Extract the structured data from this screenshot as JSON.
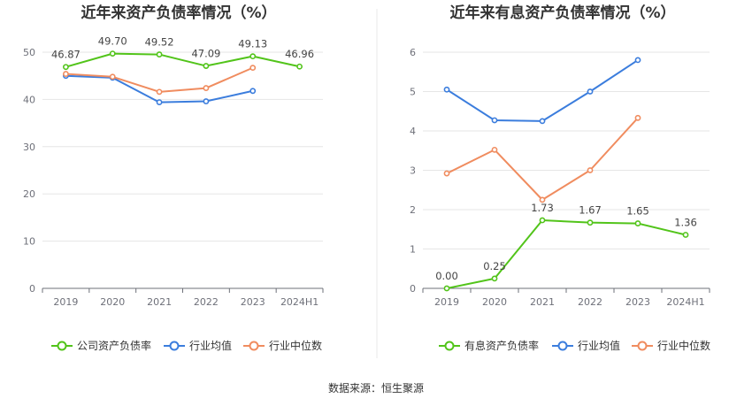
{
  "chart_data": [
    {
      "type": "line",
      "title": "近年来资产负债率情况（%）",
      "categories": [
        "2019",
        "2020",
        "2021",
        "2022",
        "2023",
        "2024H1"
      ],
      "ylim": [
        0,
        50
      ],
      "yticks": [
        0,
        10,
        20,
        30,
        40,
        50
      ],
      "legend_position": "bottom",
      "grid": true,
      "series": [
        {
          "name": "公司资产负债率",
          "color": "#52c41a",
          "labeled": true,
          "values": [
            46.87,
            49.7,
            49.52,
            47.09,
            49.13,
            46.96
          ],
          "labels": [
            "46.87",
            "49.70",
            "49.52",
            "47.09",
            "49.13",
            "46.96"
          ]
        },
        {
          "name": "行业均值",
          "color": "#3b7ddd",
          "labeled": false,
          "values": [
            45.0,
            44.6,
            39.4,
            39.6,
            41.8,
            null
          ]
        },
        {
          "name": "行业中位数",
          "color": "#f08c5f",
          "labeled": false,
          "values": [
            45.4,
            44.8,
            41.6,
            42.4,
            46.7,
            null
          ]
        }
      ]
    },
    {
      "type": "line",
      "title": "近年来有息资产负债率情况（%）",
      "categories": [
        "2019",
        "2020",
        "2021",
        "2022",
        "2023",
        "2024H1"
      ],
      "ylim": [
        0,
        6
      ],
      "yticks": [
        0,
        1,
        2,
        3,
        4,
        5,
        6
      ],
      "legend_position": "bottom",
      "grid": true,
      "series": [
        {
          "name": "有息资产负债率",
          "color": "#52c41a",
          "labeled": true,
          "values": [
            0.0,
            0.25,
            1.73,
            1.67,
            1.65,
            1.36
          ],
          "labels": [
            "0.00",
            "0.25",
            "1.73",
            "1.67",
            "1.65",
            "1.36"
          ]
        },
        {
          "name": "行业均值",
          "color": "#3b7ddd",
          "labeled": false,
          "values": [
            5.05,
            4.27,
            4.25,
            5.0,
            5.8,
            null
          ]
        },
        {
          "name": "行业中位数",
          "color": "#f08c5f",
          "labeled": false,
          "values": [
            2.92,
            3.52,
            2.25,
            3.0,
            4.33,
            null
          ]
        }
      ]
    }
  ],
  "source": "数据来源：恒生聚源"
}
